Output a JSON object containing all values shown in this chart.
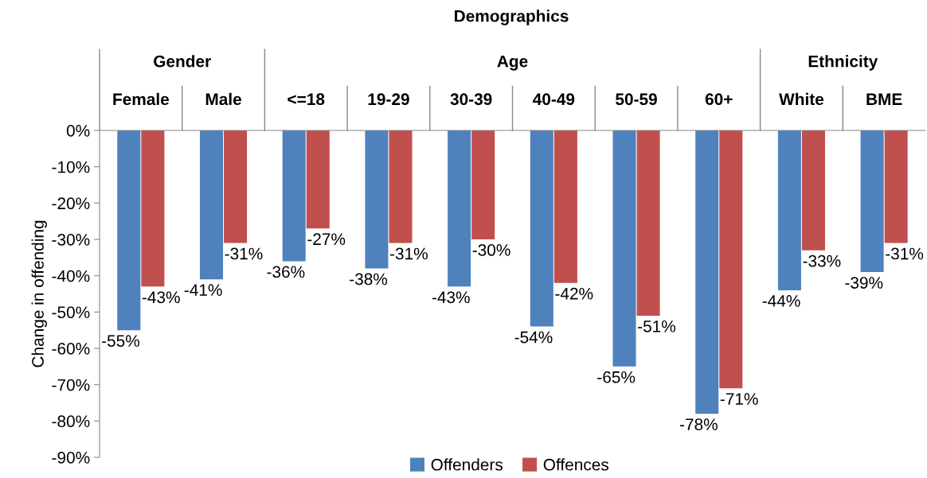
{
  "chart_data": {
    "type": "bar",
    "title": "Demographics",
    "ylabel": "Change in offending",
    "categories": [
      "Female",
      "Male",
      "<=18",
      "19-29",
      "30-39",
      "40-49",
      "50-59",
      "60+",
      "White",
      "BME"
    ],
    "annotations": [
      "Gender",
      "Age",
      "Ethnicity"
    ],
    "series": [
      {
        "name": "Offenders",
        "color": "#4f81bd",
        "values": [
          -55,
          -41,
          -36,
          -38,
          -43,
          -54,
          -65,
          -78,
          -44,
          -39
        ],
        "value_labels": [
          "-55%",
          "-41%",
          "-36%",
          "-38%",
          "-43%",
          "-54%",
          "-65%",
          "-78%",
          "-44%",
          "-39%"
        ]
      },
      {
        "name": "Offences",
        "color": "#c0504d",
        "values": [
          -43,
          -31,
          -27,
          -31,
          -30,
          -42,
          -51,
          -71,
          -33,
          -31
        ],
        "value_labels": [
          "-43%",
          "-31%",
          "-27%",
          "-31%",
          "-30%",
          "-42%",
          "-51%",
          "-71%",
          "-33%",
          "-31%"
        ]
      }
    ],
    "ylim": [
      -90,
      0
    ],
    "yticks": [
      {
        "value": -90,
        "label": "-90%"
      },
      {
        "value": -80,
        "label": "-80%"
      },
      {
        "value": -70,
        "label": "-70%"
      },
      {
        "value": -60,
        "label": "-60%"
      },
      {
        "value": -50,
        "label": "-50%"
      },
      {
        "value": -40,
        "label": "-40%"
      },
      {
        "value": -30,
        "label": "-30%"
      },
      {
        "value": -20,
        "label": "-20%"
      },
      {
        "value": -10,
        "label": "-10%"
      },
      {
        "value": 0,
        "label": "0%"
      }
    ],
    "grid": false,
    "legend": "bottom"
  }
}
